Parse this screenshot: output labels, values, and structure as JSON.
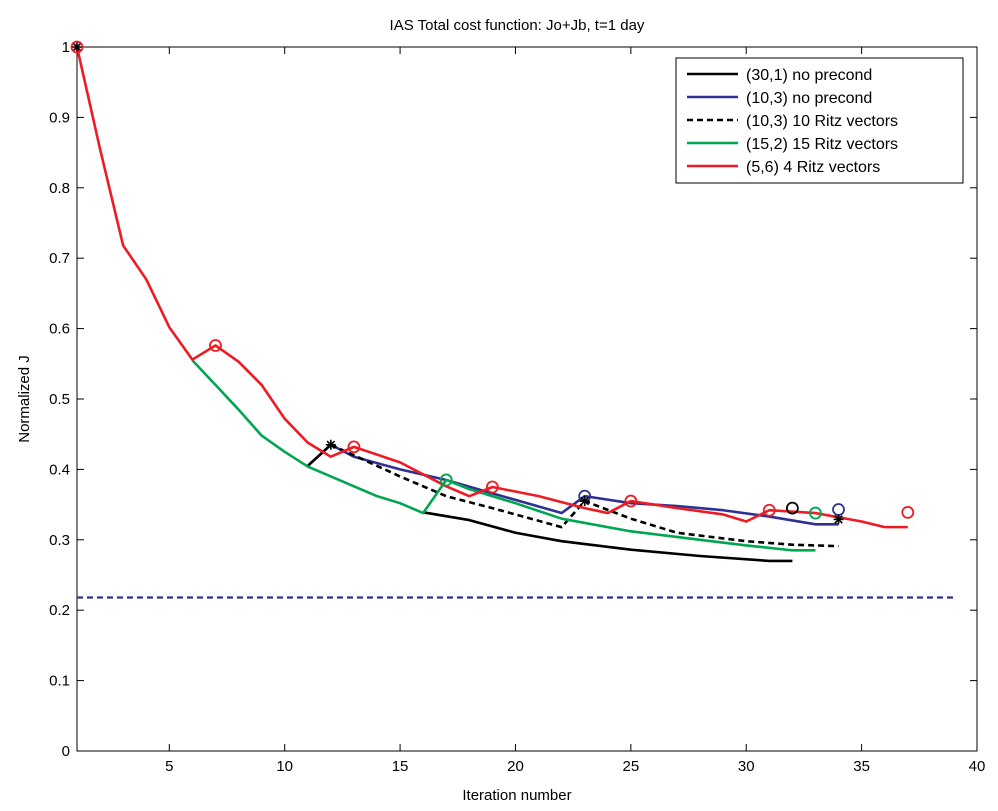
{
  "chart_data": {
    "type": "line",
    "title": "IAS Total cost function: Jo+Jb, t=1 day",
    "xlabel": "Iteration number",
    "ylabel": "Normalized J",
    "xlim": [
      1,
      40
    ],
    "ylim": [
      0,
      1
    ],
    "xticks": [
      5,
      10,
      15,
      20,
      25,
      30,
      35,
      40
    ],
    "yticks": [
      0,
      0.1,
      0.2,
      0.3,
      0.4,
      0.5,
      0.6,
      0.7,
      0.8,
      0.9,
      1
    ],
    "grid": false,
    "legend_position": "top-right",
    "series": [
      {
        "name": "(30,1) no precond",
        "color": "#000000",
        "dash": "solid",
        "segments": [
          [
            [
              1,
              1.0
            ]
          ],
          [
            [
              11,
              0.405
            ],
            [
              12,
              0.435
            ]
          ],
          [
            [
              16,
              0.339
            ],
            [
              18,
              0.328
            ],
            [
              20,
              0.31
            ],
            [
              22,
              0.298
            ],
            [
              25,
              0.286
            ],
            [
              28,
              0.277
            ],
            [
              31,
              0.27
            ],
            [
              32,
              0.27
            ]
          ]
        ],
        "circles": [
          [
            32,
            0.345
          ]
        ],
        "stars": []
      },
      {
        "name": "(10,3) no precond",
        "color": "#2e3192",
        "dash": "solid",
        "segments": [
          [
            [
              12,
              0.435
            ],
            [
              13,
              0.418
            ],
            [
              15,
              0.4
            ],
            [
              17,
              0.385
            ],
            [
              19,
              0.366
            ],
            [
              22,
              0.338
            ],
            [
              23,
              0.362
            ],
            [
              25,
              0.352
            ],
            [
              27,
              0.348
            ],
            [
              29,
              0.342
            ],
            [
              31,
              0.333
            ],
            [
              33,
              0.322
            ],
            [
              34,
              0.322
            ]
          ]
        ],
        "circles": [
          [
            23,
            0.362
          ],
          [
            34,
            0.343
          ]
        ],
        "stars": []
      },
      {
        "name": "(10,3) 10 Ritz vectors",
        "color": "#000000",
        "dash": "dashed",
        "segments": [
          [
            [
              12,
              0.435
            ],
            [
              13,
              0.42
            ],
            [
              15,
              0.39
            ],
            [
              17,
              0.362
            ],
            [
              19,
              0.345
            ],
            [
              22,
              0.318
            ],
            [
              23,
              0.355
            ],
            [
              25,
              0.33
            ],
            [
              27,
              0.31
            ],
            [
              30,
              0.298
            ],
            [
              32,
              0.293
            ],
            [
              34,
              0.291
            ]
          ]
        ],
        "circles": [],
        "stars": [
          [
            1,
            1.0
          ],
          [
            12,
            0.435
          ],
          [
            23,
            0.355
          ],
          [
            34,
            0.329
          ]
        ]
      },
      {
        "name": "(15,2) 15 Ritz vectors",
        "color": "#00a651",
        "dash": "solid",
        "segments": [
          [
            [
              6,
              0.555
            ],
            [
              7,
              0.52
            ],
            [
              8,
              0.485
            ],
            [
              9,
              0.448
            ],
            [
              10,
              0.425
            ],
            [
              11,
              0.404
            ],
            [
              12,
              0.39
            ],
            [
              14,
              0.362
            ],
            [
              15,
              0.352
            ],
            [
              16,
              0.338
            ],
            [
              17,
              0.385
            ],
            [
              18,
              0.372
            ],
            [
              20,
              0.352
            ],
            [
              22,
              0.33
            ],
            [
              25,
              0.312
            ],
            [
              28,
              0.3
            ],
            [
              30,
              0.292
            ],
            [
              32,
              0.285
            ],
            [
              33,
              0.285
            ]
          ]
        ],
        "circles": [
          [
            17,
            0.385
          ],
          [
            33,
            0.338
          ]
        ],
        "stars": []
      },
      {
        "name": "(5,6) 4 Ritz vectors",
        "color": "#ed1c24",
        "dash": "solid",
        "segments": [
          [
            [
              1,
              1.0
            ],
            [
              2,
              0.855
            ],
            [
              3,
              0.718
            ],
            [
              4,
              0.67
            ],
            [
              5,
              0.602
            ],
            [
              6,
              0.556
            ],
            [
              7,
              0.576
            ],
            [
              8,
              0.553
            ],
            [
              9,
              0.52
            ],
            [
              10,
              0.472
            ],
            [
              11,
              0.438
            ],
            [
              12,
              0.418
            ],
            [
              13,
              0.432
            ],
            [
              15,
              0.41
            ],
            [
              17,
              0.376
            ],
            [
              18,
              0.362
            ],
            [
              19,
              0.375
            ],
            [
              21,
              0.362
            ],
            [
              23,
              0.345
            ],
            [
              24,
              0.338
            ],
            [
              25,
              0.355
            ],
            [
              27,
              0.345
            ],
            [
              29,
              0.336
            ],
            [
              30,
              0.326
            ],
            [
              31,
              0.342
            ],
            [
              33,
              0.338
            ],
            [
              35,
              0.326
            ],
            [
              36,
              0.318
            ],
            [
              37,
              0.318
            ]
          ]
        ],
        "circles": [
          [
            1,
            1.0
          ],
          [
            7,
            0.576
          ],
          [
            13,
            0.432
          ],
          [
            19,
            0.375
          ],
          [
            25,
            0.355
          ],
          [
            31,
            0.342
          ],
          [
            37,
            0.339
          ]
        ],
        "stars": []
      }
    ],
    "reference_line": {
      "y": 0.218,
      "color": "#2e3192",
      "dash": "dashed"
    }
  }
}
